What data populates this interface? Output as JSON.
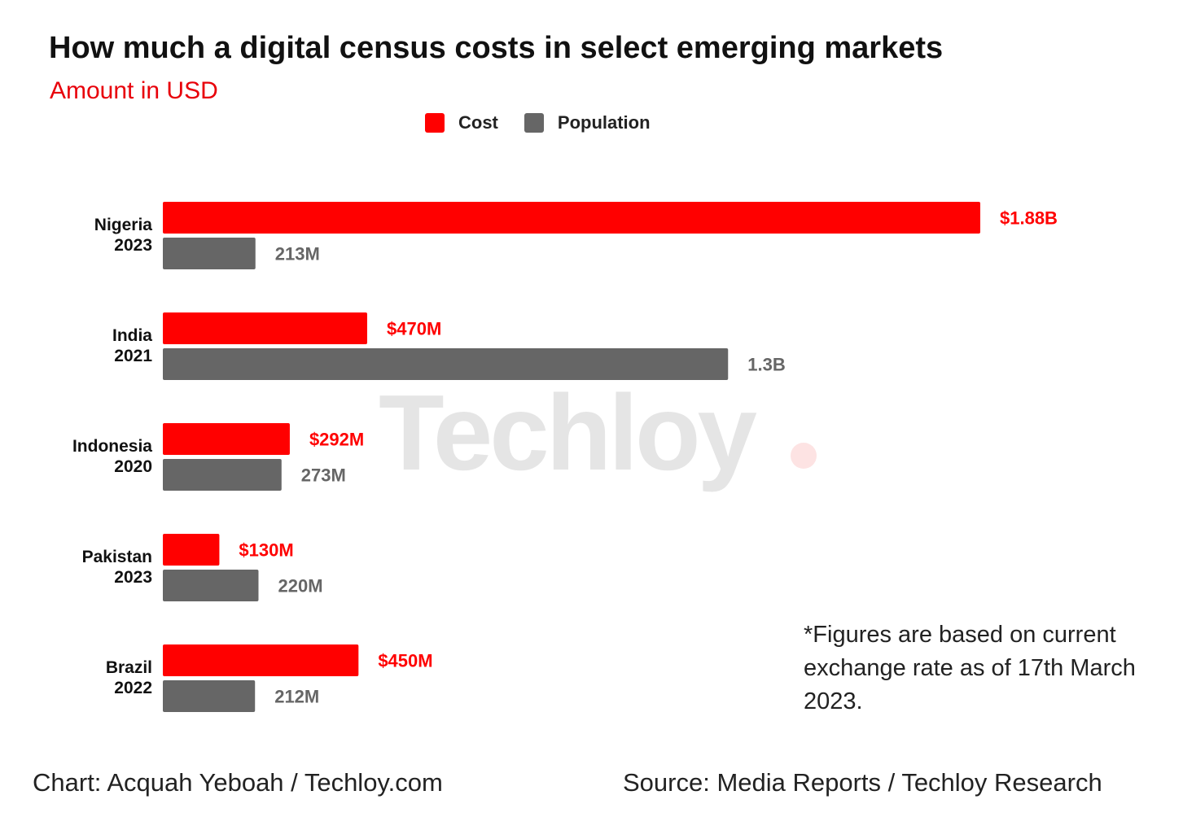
{
  "chart_data": {
    "type": "bar",
    "orientation": "horizontal",
    "title": "How much a digital census costs in select emerging markets",
    "subtitle": "Amount in USD",
    "categories": [
      {
        "country": "Nigeria",
        "year": "2023"
      },
      {
        "country": "India",
        "year": "2021"
      },
      {
        "country": "Indonesia",
        "year": "2020"
      },
      {
        "country": "Pakistan",
        "year": "2023"
      },
      {
        "country": "Brazil",
        "year": "2022"
      }
    ],
    "series": [
      {
        "name": "Cost",
        "color": "#ff0000",
        "values": [
          1880000000,
          470000000,
          292000000,
          130000000,
          450000000
        ],
        "labels": [
          "$1.88B",
          "$470M",
          "$292M",
          "$130M",
          "$450M"
        ]
      },
      {
        "name": "Population",
        "color": "#666666",
        "values": [
          213000000,
          1300000000,
          273000000,
          220000000,
          212000000
        ],
        "labels": [
          "213M",
          "1.3B",
          "273M",
          "220M",
          "212M"
        ]
      }
    ],
    "legend_position": "top-center",
    "grid": false,
    "xlim": [
      0,
      1880000000
    ]
  },
  "watermark": "Techloy",
  "footnote": "*Figures are based on current exchange rate as of 17th March 2023.",
  "credit": "Chart: Acquah Yeboah / Techloy.com",
  "source": "Source: Media Reports / Techloy Research"
}
